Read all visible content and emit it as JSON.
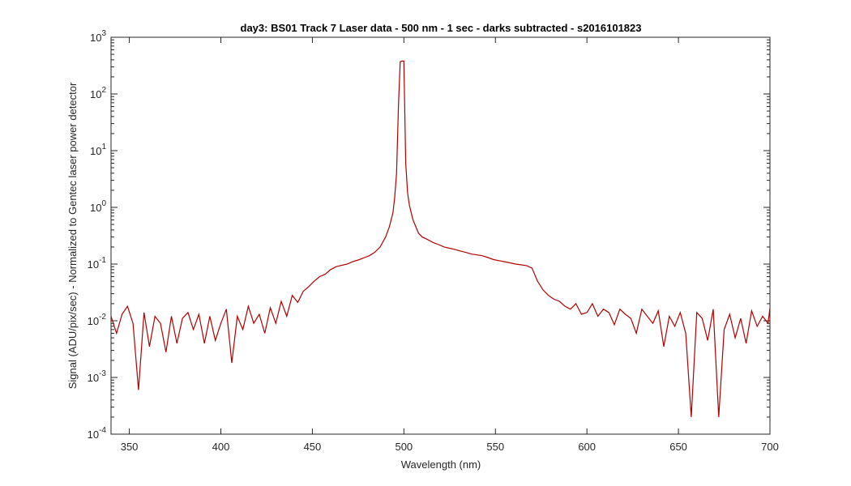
{
  "chart_data": {
    "type": "line",
    "title": "day3: BS01  Track 7 Laser data - 500 nm - 1 sec - darks subtracted - s2016101823",
    "xlabel": "Wavelength (nm)",
    "ylabel": "Signal (ADU/pix/sec) - Normalized to Gentec laser power detector",
    "xlim": [
      340,
      700
    ],
    "ylim": [
      0.0001,
      1000
    ],
    "yscale": "log",
    "grid": false,
    "legend": "none",
    "x_ticks": [
      350,
      400,
      450,
      500,
      550,
      600,
      650,
      700
    ],
    "x_tick_labels": [
      "350",
      "400",
      "450",
      "500",
      "550",
      "600",
      "650",
      "700"
    ],
    "y_ticks": [
      0.0001,
      0.001,
      0.01,
      0.1,
      1,
      10,
      100,
      1000
    ],
    "y_tick_labels": [
      {
        "base": "10",
        "exp": "-4"
      },
      {
        "base": "10",
        "exp": "-3"
      },
      {
        "base": "10",
        "exp": "-2"
      },
      {
        "base": "10",
        "exp": "-1"
      },
      {
        "base": "10",
        "exp": "0"
      },
      {
        "base": "10",
        "exp": "1"
      },
      {
        "base": "10",
        "exp": "2"
      },
      {
        "base": "10",
        "exp": "3"
      }
    ],
    "series": [
      {
        "color": "#b00000",
        "x": [
          340,
          343,
          346,
          349,
          352,
          355,
          358,
          361,
          364,
          367,
          370,
          373,
          376,
          379,
          382,
          385,
          388,
          391,
          394,
          397,
          400,
          403,
          406,
          409,
          412,
          415,
          418,
          421,
          424,
          427,
          430,
          433,
          436,
          439,
          442,
          445,
          448,
          451,
          454,
          457,
          460,
          463,
          466,
          469,
          472,
          475,
          478,
          481,
          484,
          487,
          490,
          492,
          494,
          495,
          496,
          497,
          498,
          499,
          500,
          501,
          502,
          503,
          504,
          505,
          506,
          508,
          510,
          513,
          516,
          519,
          522,
          525,
          528,
          531,
          534,
          537,
          540,
          543,
          546,
          549,
          552,
          555,
          558,
          561,
          564,
          567,
          570,
          573,
          576,
          579,
          582,
          585,
          588,
          591,
          594,
          597,
          600,
          603,
          606,
          609,
          612,
          615,
          618,
          621,
          624,
          627,
          630,
          633,
          636,
          639,
          642,
          645,
          648,
          651,
          654,
          657,
          660,
          663,
          666,
          669,
          672,
          675,
          678,
          681,
          684,
          687,
          690,
          693,
          696,
          699,
          700
        ],
        "y": [
          0.012,
          0.006,
          0.013,
          0.018,
          0.009,
          0.0006,
          0.014,
          0.0035,
          0.012,
          0.009,
          0.0028,
          0.012,
          0.004,
          0.011,
          0.014,
          0.007,
          0.013,
          0.004,
          0.012,
          0.0045,
          0.009,
          0.016,
          0.0018,
          0.012,
          0.007,
          0.018,
          0.009,
          0.013,
          0.006,
          0.017,
          0.009,
          0.022,
          0.012,
          0.028,
          0.021,
          0.033,
          0.04,
          0.05,
          0.06,
          0.066,
          0.08,
          0.09,
          0.095,
          0.1,
          0.11,
          0.118,
          0.128,
          0.14,
          0.16,
          0.2,
          0.3,
          0.45,
          0.8,
          1.5,
          4,
          60,
          370,
          380,
          380,
          6,
          1.8,
          1.1,
          0.8,
          0.6,
          0.5,
          0.35,
          0.3,
          0.27,
          0.24,
          0.22,
          0.2,
          0.19,
          0.18,
          0.17,
          0.16,
          0.15,
          0.145,
          0.14,
          0.13,
          0.12,
          0.115,
          0.11,
          0.105,
          0.1,
          0.097,
          0.094,
          0.085,
          0.05,
          0.035,
          0.028,
          0.024,
          0.022,
          0.018,
          0.016,
          0.02,
          0.013,
          0.014,
          0.02,
          0.012,
          0.016,
          0.014,
          0.0085,
          0.016,
          0.013,
          0.011,
          0.006,
          0.016,
          0.012,
          0.009,
          0.015,
          0.0035,
          0.012,
          0.008,
          0.014,
          0.006,
          0.0002,
          0.014,
          0.011,
          0.0045,
          0.016,
          0.0002,
          0.007,
          0.013,
          0.005,
          0.011,
          0.004,
          0.015,
          0.008,
          0.012,
          0.009,
          0.017
        ]
      }
    ]
  }
}
